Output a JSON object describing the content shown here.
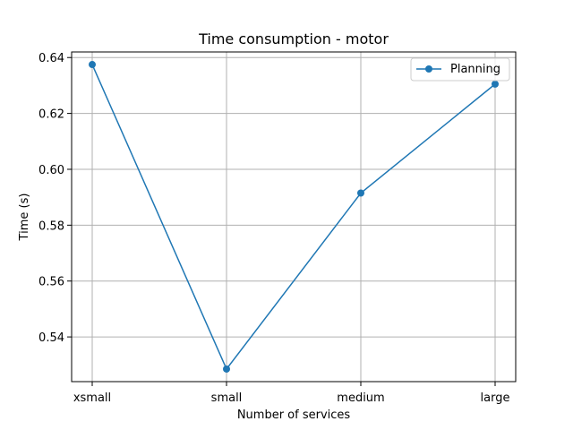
{
  "chart_data": {
    "type": "line",
    "title": "Time consumption - motor",
    "xlabel": "Number of services",
    "ylabel": "Time (s)",
    "categories": [
      "xsmall",
      "small",
      "medium",
      "large"
    ],
    "series": [
      {
        "name": "Planning",
        "values": [
          0.6375,
          0.5285,
          0.5915,
          0.6305
        ],
        "color": "#1f77b4",
        "marker": "circle"
      }
    ],
    "ylim": [
      0.524,
      0.642
    ],
    "yticks": [
      0.54,
      0.56,
      0.58,
      0.6,
      0.62,
      0.64
    ],
    "ytick_labels": [
      "0.54",
      "0.56",
      "0.58",
      "0.60",
      "0.62",
      "0.64"
    ],
    "grid": true,
    "legend_position": "top-right"
  }
}
